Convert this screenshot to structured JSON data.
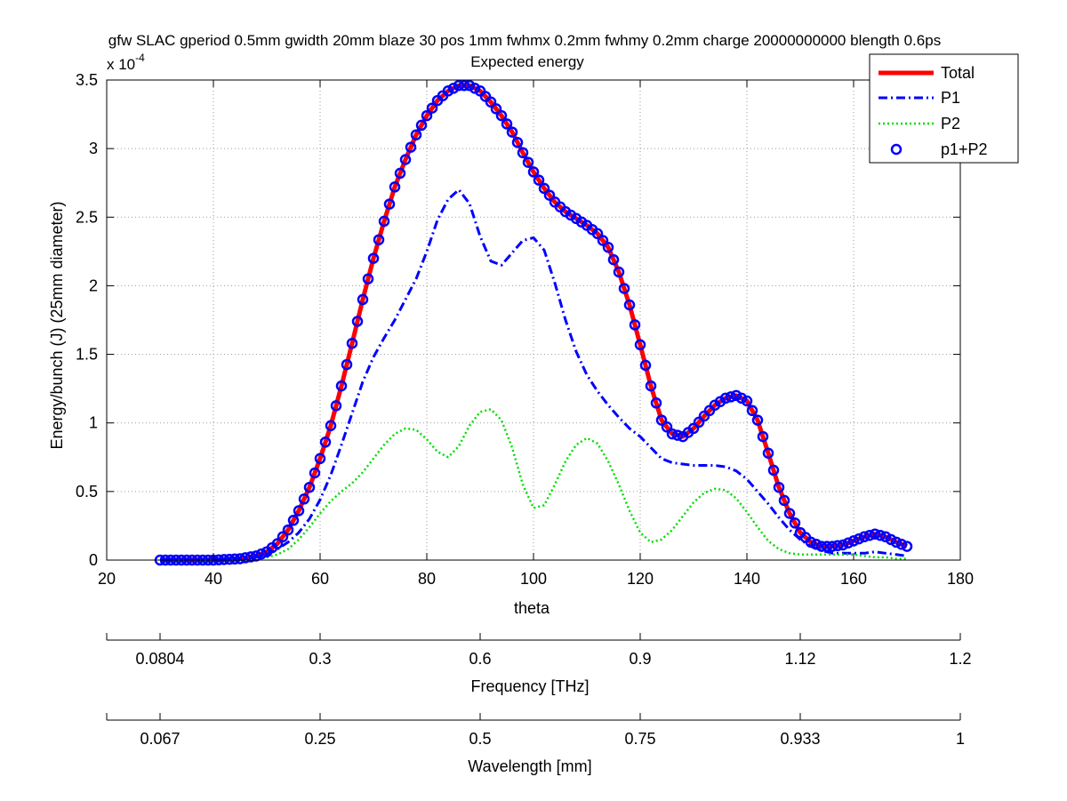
{
  "figure": {
    "title_line1": "gfw SLAC gperiod 0.5mm gwidth 20mm blaze 30 pos 1mm fwhmx 0.2mm fwhmy 0.2mm charge 20000000000 blength 0.6ps",
    "title_line2": "Expected energy"
  },
  "colors": {
    "total": "#ff0000",
    "p1": "#0000ff",
    "p2": "#00dd00",
    "p1p2": "#0000ff",
    "grid": "#999999"
  },
  "chart_data": {
    "type": "line",
    "xlabel": "theta",
    "ylabel": "Energy/bunch (J) (25mm diameter)",
    "y_exponent_label": "x 10",
    "y_exponent_power": "-4",
    "xlim": [
      20,
      180
    ],
    "ylim": [
      0,
      3.5
    ],
    "y_scale": 0.0001,
    "grid": true,
    "legend_position": "top-right",
    "x_ticks": [
      20,
      40,
      60,
      80,
      100,
      120,
      140,
      160,
      180
    ],
    "x_tick_labels": [
      "20",
      "40",
      "60",
      "80",
      "100",
      "120",
      "140",
      "160",
      "180"
    ],
    "y_ticks": [
      0,
      0.5,
      1,
      1.5,
      2,
      2.5,
      3,
      3.5
    ],
    "y_tick_labels": [
      "0",
      "0.5",
      "1",
      "1.5",
      "2",
      "2.5",
      "3",
      "3.5"
    ],
    "x": [
      30,
      35,
      40,
      45,
      48,
      50,
      52,
      54,
      56,
      58,
      60,
      62,
      64,
      66,
      68,
      70,
      72,
      74,
      76,
      78,
      80,
      82,
      84,
      86,
      88,
      90,
      92,
      94,
      96,
      98,
      100,
      102,
      104,
      106,
      108,
      110,
      112,
      114,
      116,
      118,
      120,
      122,
      124,
      126,
      128,
      130,
      132,
      134,
      136,
      138,
      140,
      142,
      144,
      146,
      148,
      150,
      152,
      154,
      156,
      158,
      160,
      162,
      164,
      166,
      168,
      170
    ],
    "series": [
      {
        "name": "Total",
        "style": "solid",
        "values": [
          0,
          0,
          0,
          0.01,
          0.03,
          0.06,
          0.12,
          0.22,
          0.36,
          0.53,
          0.74,
          0.98,
          1.27,
          1.58,
          1.9,
          2.2,
          2.47,
          2.72,
          2.92,
          3.1,
          3.24,
          3.35,
          3.42,
          3.46,
          3.46,
          3.42,
          3.34,
          3.24,
          3.12,
          2.97,
          2.83,
          2.71,
          2.61,
          2.54,
          2.49,
          2.44,
          2.38,
          2.28,
          2.1,
          1.86,
          1.57,
          1.27,
          1.02,
          0.92,
          0.9,
          0.96,
          1.05,
          1.13,
          1.18,
          1.2,
          1.16,
          1.02,
          0.78,
          0.53,
          0.34,
          0.2,
          0.13,
          0.1,
          0.1,
          0.11,
          0.14,
          0.17,
          0.19,
          0.17,
          0.13,
          0.1
        ]
      },
      {
        "name": "P1",
        "style": "dashdot",
        "values": [
          0,
          0,
          0,
          0.01,
          0.02,
          0.04,
          0.08,
          0.13,
          0.2,
          0.3,
          0.44,
          0.62,
          0.84,
          1.07,
          1.3,
          1.48,
          1.62,
          1.75,
          1.9,
          2.05,
          2.25,
          2.48,
          2.63,
          2.7,
          2.6,
          2.36,
          2.18,
          2.15,
          2.24,
          2.33,
          2.35,
          2.26,
          2.02,
          1.75,
          1.52,
          1.35,
          1.23,
          1.13,
          1.04,
          0.96,
          0.9,
          0.82,
          0.74,
          0.71,
          0.7,
          0.69,
          0.69,
          0.69,
          0.68,
          0.65,
          0.59,
          0.5,
          0.41,
          0.31,
          0.22,
          0.15,
          0.1,
          0.07,
          0.05,
          0.05,
          0.05,
          0.05,
          0.06,
          0.05,
          0.04,
          0.03
        ]
      },
      {
        "name": "P2",
        "style": "dotted",
        "values": [
          0,
          0,
          0,
          0,
          0.01,
          0.02,
          0.04,
          0.08,
          0.15,
          0.24,
          0.34,
          0.43,
          0.5,
          0.56,
          0.64,
          0.74,
          0.84,
          0.92,
          0.96,
          0.95,
          0.88,
          0.79,
          0.75,
          0.83,
          0.98,
          1.08,
          1.1,
          1.02,
          0.82,
          0.55,
          0.38,
          0.4,
          0.55,
          0.72,
          0.84,
          0.89,
          0.85,
          0.72,
          0.55,
          0.36,
          0.2,
          0.13,
          0.15,
          0.22,
          0.32,
          0.42,
          0.49,
          0.52,
          0.51,
          0.45,
          0.35,
          0.24,
          0.14,
          0.08,
          0.05,
          0.04,
          0.04,
          0.04,
          0.04,
          0.04,
          0.04,
          0.03,
          0.02,
          0.02,
          0.01,
          0.01
        ]
      },
      {
        "name": "p1+P2",
        "style": "circles",
        "values": [
          0,
          0,
          0,
          0.01,
          0.03,
          0.06,
          0.12,
          0.22,
          0.36,
          0.53,
          0.74,
          0.98,
          1.27,
          1.58,
          1.9,
          2.2,
          2.47,
          2.72,
          2.92,
          3.1,
          3.24,
          3.35,
          3.42,
          3.46,
          3.46,
          3.42,
          3.34,
          3.24,
          3.12,
          2.97,
          2.83,
          2.71,
          2.61,
          2.54,
          2.49,
          2.44,
          2.38,
          2.28,
          2.1,
          1.86,
          1.57,
          1.27,
          1.02,
          0.92,
          0.9,
          0.96,
          1.05,
          1.13,
          1.18,
          1.2,
          1.16,
          1.02,
          0.78,
          0.53,
          0.34,
          0.2,
          0.13,
          0.1,
          0.1,
          0.11,
          0.14,
          0.17,
          0.19,
          0.17,
          0.13,
          0.1
        ]
      }
    ],
    "secondary_axes": [
      {
        "label": "Frequency [THz]",
        "tick_theta": [
          20,
          30,
          60,
          90,
          120,
          150,
          180
        ],
        "tick_labels": [
          "",
          "0.0804",
          "0.3",
          "0.6",
          "0.9",
          "1.12",
          "1.2"
        ]
      },
      {
        "label": "Wavelength [mm]",
        "tick_theta": [
          20,
          30,
          60,
          90,
          120,
          150,
          180
        ],
        "tick_labels": [
          "",
          "0.067",
          "0.25",
          "0.5",
          "0.75",
          "0.933",
          "1"
        ]
      }
    ]
  }
}
